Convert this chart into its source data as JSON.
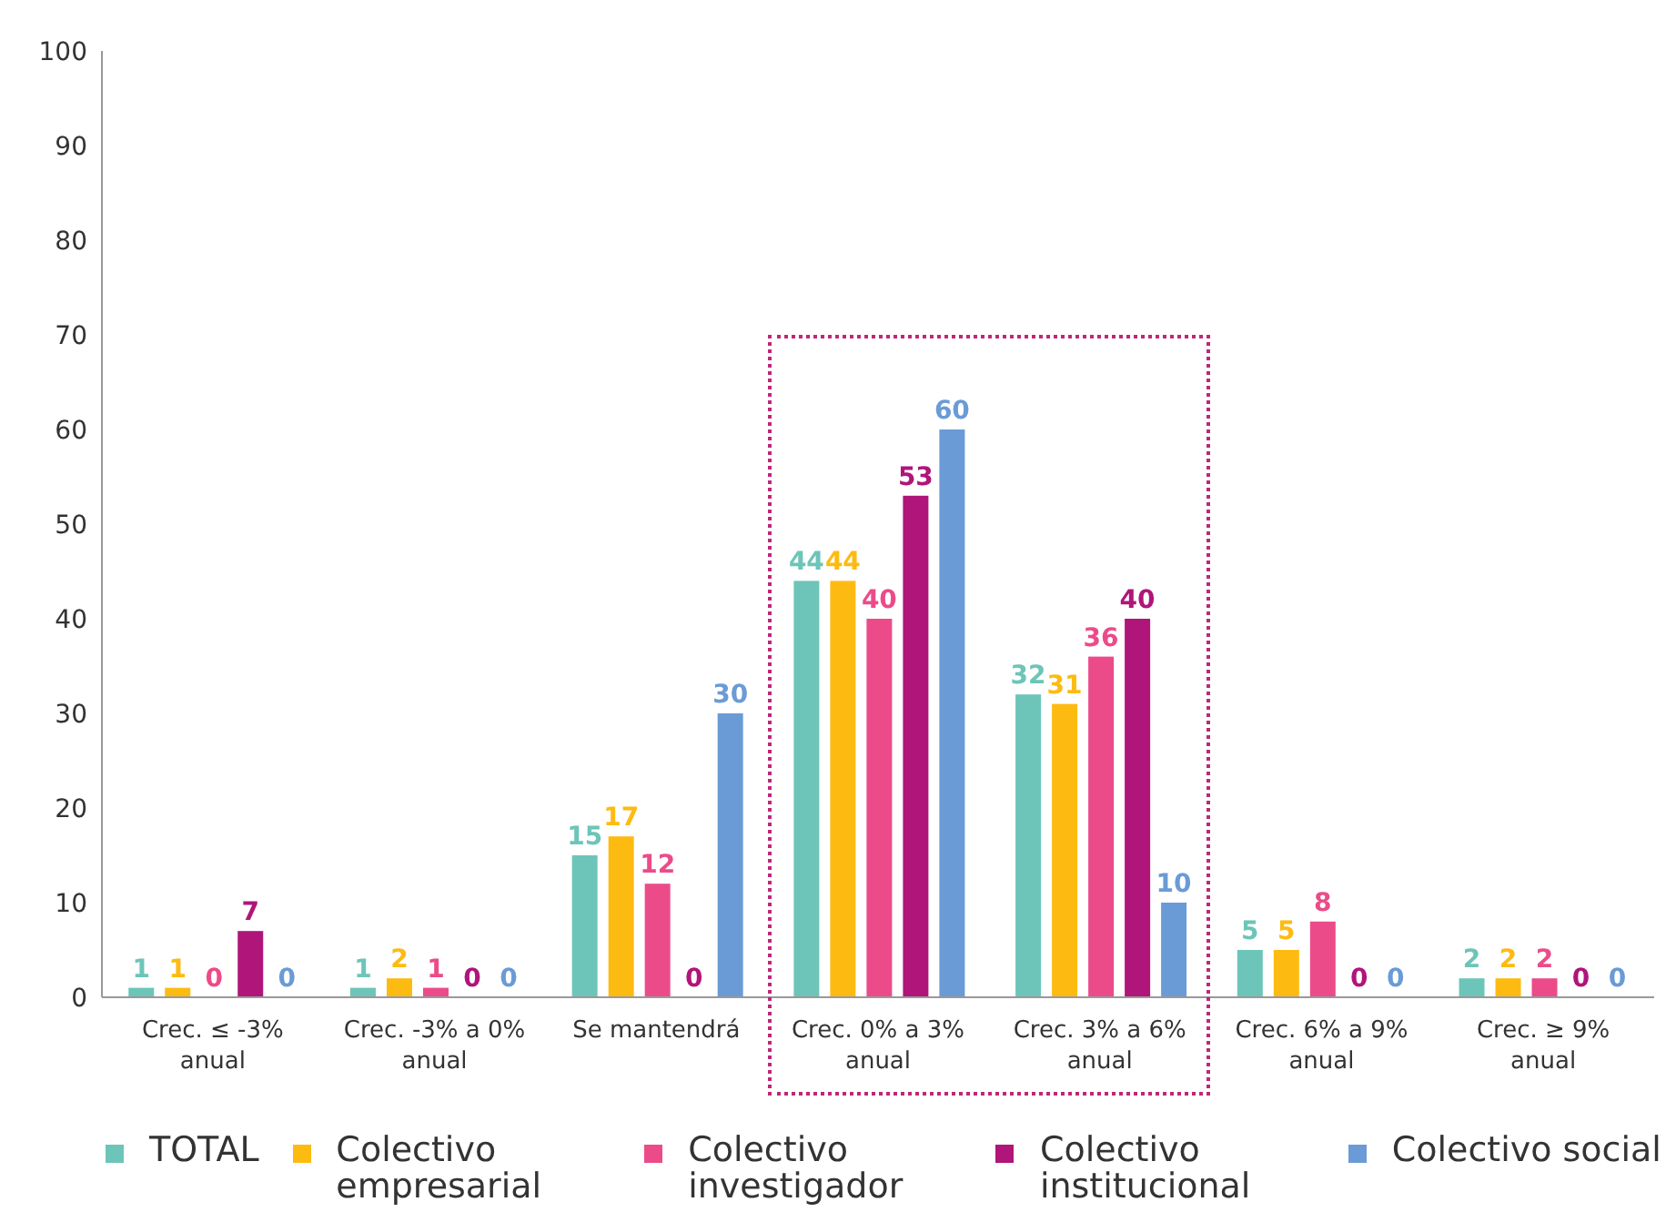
{
  "chart_data": {
    "type": "bar",
    "categories": [
      "Crec. ≤ -3% anual",
      "Crec. -3% a 0% anual",
      "Se mantendrá",
      "Crec. 0% a 3% anual",
      "Crec. 3% a 6% anual",
      "Crec. 6% a 9% anual",
      "Crec. ≥ 9% anual"
    ],
    "series": [
      {
        "name": "TOTAL",
        "color": "#6cc5b8",
        "values": [
          1,
          1,
          15,
          44,
          32,
          5,
          2
        ]
      },
      {
        "name": "Colectivo empresarial",
        "color": "#fdbb12",
        "values": [
          1,
          2,
          17,
          44,
          31,
          5,
          2
        ]
      },
      {
        "name": "Colectivo investigador",
        "color": "#ec4b8a",
        "values": [
          0,
          1,
          12,
          40,
          36,
          8,
          2
        ]
      },
      {
        "name": "Colectivo institucional",
        "color": "#b0157a",
        "values": [
          7,
          0,
          0,
          53,
          40,
          0,
          0
        ]
      },
      {
        "name": "Colectivo social",
        "color": "#6a9bd6",
        "values": [
          0,
          0,
          30,
          60,
          10,
          0,
          0
        ]
      }
    ],
    "ylim": [
      0,
      100
    ],
    "yticks": [
      0,
      10,
      20,
      30,
      40,
      50,
      60,
      70,
      80,
      90,
      100
    ],
    "grid": false,
    "legend": "bottom",
    "data_labels": true
  }
}
